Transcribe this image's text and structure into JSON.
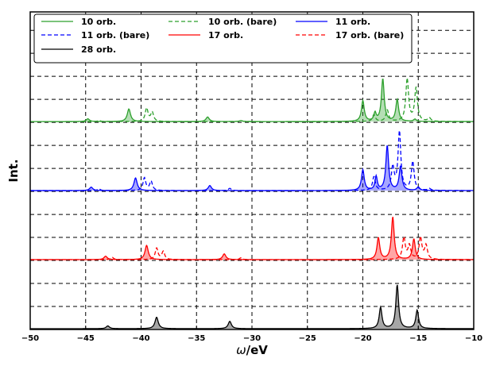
{
  "chart_data": {
    "type": "line",
    "title": "",
    "xlabel_symbol": "ω",
    "xlabel_unit": "/eV",
    "ylabel": "Int.",
    "xlim": [
      -50,
      -10
    ],
    "xticks": [
      -50,
      -45,
      -40,
      -35,
      -30,
      -25,
      -20,
      -15,
      -10
    ],
    "xtick_labels": [
      "−50",
      "−45",
      "−40",
      "−35",
      "−30",
      "−25",
      "−20",
      "−15",
      "−10"
    ],
    "grid": "dashed",
    "legend": "top, 3 columns",
    "series": [
      {
        "name": "10 orb.",
        "color": "#2ca02c",
        "linestyle": "solid",
        "filled": true,
        "baseline": 3,
        "peaks": [
          [
            -44.8,
            0.12,
            0.35
          ],
          [
            -41.1,
            0.55,
            0.35
          ],
          [
            -34.0,
            0.2,
            0.35
          ],
          [
            -31.0,
            0.04,
            0.35
          ],
          [
            -20.0,
            0.9,
            0.3
          ],
          [
            -18.9,
            0.35,
            0.25
          ],
          [
            -18.2,
            1.85,
            0.3
          ],
          [
            -16.9,
            0.95,
            0.3
          ],
          [
            -15.3,
            0.1,
            0.3
          ]
        ]
      },
      {
        "name": "10 orb. (bare)",
        "color": "#2ca02c",
        "linestyle": "dashed",
        "filled": false,
        "baseline": 3,
        "peaks": [
          [
            -43.8,
            0.05,
            0.3
          ],
          [
            -39.5,
            0.58,
            0.3
          ],
          [
            -39.0,
            0.4,
            0.3
          ],
          [
            -31.0,
            0.05,
            0.3
          ],
          [
            -19.0,
            0.3,
            0.3
          ],
          [
            -17.8,
            0.5,
            0.3
          ],
          [
            -16.0,
            1.85,
            0.3
          ],
          [
            -15.2,
            1.45,
            0.3
          ],
          [
            -14.0,
            0.15,
            0.3
          ]
        ]
      },
      {
        "name": "11 orb.",
        "color": "#0000ff",
        "linestyle": "solid",
        "filled": true,
        "baseline": 2,
        "peaks": [
          [
            -44.5,
            0.15,
            0.35
          ],
          [
            -40.5,
            0.55,
            0.35
          ],
          [
            -33.8,
            0.22,
            0.35
          ],
          [
            -20.0,
            0.9,
            0.3
          ],
          [
            -18.8,
            0.6,
            0.25
          ],
          [
            -17.8,
            1.95,
            0.3
          ],
          [
            -16.6,
            1.05,
            0.3
          ],
          [
            -15.0,
            0.15,
            0.3
          ]
        ]
      },
      {
        "name": "11 orb. (bare)",
        "color": "#0000ff",
        "linestyle": "dashed",
        "filled": false,
        "baseline": 2,
        "peaks": [
          [
            -43.8,
            0.08,
            0.3
          ],
          [
            -39.7,
            0.55,
            0.3
          ],
          [
            -39.1,
            0.4,
            0.3
          ],
          [
            -32.0,
            0.1,
            0.3
          ],
          [
            -19.0,
            0.6,
            0.3
          ],
          [
            -17.3,
            1.0,
            0.3
          ],
          [
            -16.7,
            2.55,
            0.3
          ],
          [
            -15.5,
            1.25,
            0.3
          ],
          [
            -14.0,
            0.08,
            0.3
          ]
        ]
      },
      {
        "name": "17 orb.",
        "color": "#ff0000",
        "linestyle": "solid",
        "filled": true,
        "baseline": 1,
        "peaks": [
          [
            -43.2,
            0.15,
            0.35
          ],
          [
            -39.5,
            0.62,
            0.35
          ],
          [
            -32.5,
            0.25,
            0.35
          ],
          [
            -18.6,
            0.95,
            0.3
          ],
          [
            -17.3,
            1.85,
            0.3
          ],
          [
            -15.4,
            0.9,
            0.3
          ]
        ]
      },
      {
        "name": "17 orb. (bare)",
        "color": "#ff0000",
        "linestyle": "dashed",
        "filled": false,
        "baseline": 1,
        "peaks": [
          [
            -42.6,
            0.1,
            0.3
          ],
          [
            -38.6,
            0.5,
            0.3
          ],
          [
            -38.0,
            0.35,
            0.3
          ],
          [
            -31.0,
            0.08,
            0.3
          ],
          [
            -16.3,
            0.95,
            0.3
          ],
          [
            -15.8,
            0.6,
            0.3
          ],
          [
            -14.8,
            0.95,
            0.3
          ],
          [
            -14.3,
            0.6,
            0.3
          ]
        ]
      },
      {
        "name": "28 orb.",
        "color": "#000000",
        "linestyle": "solid",
        "filled": true,
        "baseline": 0,
        "peaks": [
          [
            -43.0,
            0.12,
            0.35
          ],
          [
            -38.6,
            0.5,
            0.35
          ],
          [
            -32.0,
            0.32,
            0.35
          ],
          [
            -18.4,
            0.92,
            0.3
          ],
          [
            -16.9,
            1.9,
            0.3
          ],
          [
            -15.1,
            0.8,
            0.3
          ]
        ]
      }
    ]
  }
}
